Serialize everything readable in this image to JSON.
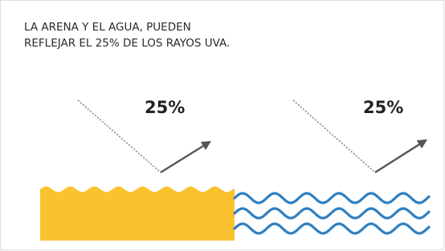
{
  "title": {
    "lines": [
      "LA ARENA Y EL AGUA, PUEDEN",
      "REFLEJAR EL 25% DE LOS RAYOS UVA."
    ]
  },
  "panels": [
    {
      "label": "25%"
    },
    {
      "label": "25%"
    }
  ]
}
